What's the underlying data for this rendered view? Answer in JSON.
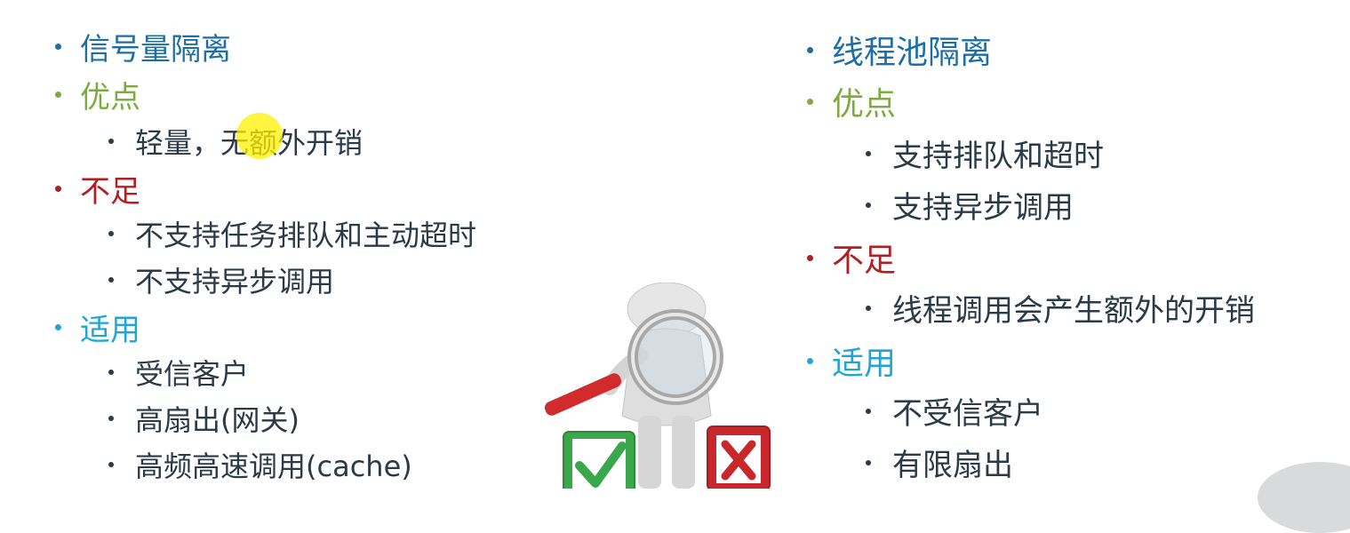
{
  "left": {
    "title": "信号量隔离",
    "pros_heading": "优点",
    "pros": [
      "轻量，无额外开销"
    ],
    "cons_heading": "不足",
    "cons": [
      "不支持任务排队和主动超时",
      "不支持异步调用"
    ],
    "use_heading": "适用",
    "use": [
      "受信客户",
      "高扇出(网关)",
      "高频高速调用(cache)"
    ]
  },
  "right": {
    "title": "线程池隔离",
    "pros_heading": "优点",
    "pros": [
      "支持排队和超时",
      "支持异步调用"
    ],
    "cons_heading": "不足",
    "cons": [
      "线程调用会产生额外的开销"
    ],
    "use_heading": "适用",
    "use": [
      "不受信客户",
      "有限扇出"
    ]
  },
  "colors": {
    "title": "#1c6ea4",
    "pros": "#7eab3d",
    "cons": "#b21f22",
    "use": "#1ea6da",
    "body": "#2a3a47"
  },
  "illustration": {
    "icons": [
      "magnifier-person-icon",
      "check-box-icon",
      "x-box-icon"
    ]
  }
}
